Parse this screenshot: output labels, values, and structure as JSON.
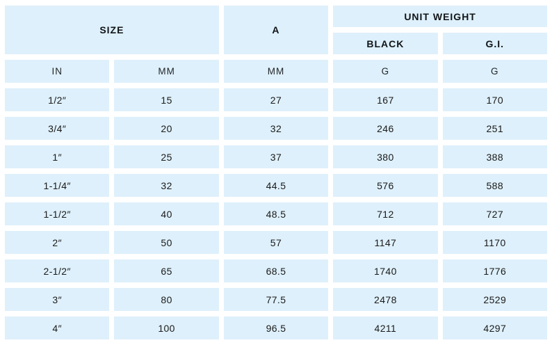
{
  "table": {
    "header": {
      "size": "SIZE",
      "a": "A",
      "unit_weight": "UNIT WEIGHT",
      "black": "BLACK",
      "gi": "G.I."
    },
    "units": [
      "IN",
      "MM",
      "MM",
      "G",
      "G"
    ],
    "columns": [
      "size_in",
      "size_mm",
      "a_mm",
      "unit_weight_black_g",
      "unit_weight_gi_g"
    ],
    "rows": [
      [
        "1/2″",
        "15",
        "27",
        "167",
        "170"
      ],
      [
        "3/4″",
        "20",
        "32",
        "246",
        "251"
      ],
      [
        "1″",
        "25",
        "37",
        "380",
        "388"
      ],
      [
        "1-1/4″",
        "32",
        "44.5",
        "576",
        "588"
      ],
      [
        "1-1/2″",
        "40",
        "48.5",
        "712",
        "727"
      ],
      [
        "2″",
        "50",
        "57",
        "1147",
        "1170"
      ],
      [
        "2-1/2″",
        "65",
        "68.5",
        "1740",
        "1776"
      ],
      [
        "3″",
        "80",
        "77.5",
        "2478",
        "2529"
      ],
      [
        "4″",
        "100",
        "96.5",
        "4211",
        "4297"
      ]
    ]
  },
  "colors": {
    "cell_background": "#def0fb",
    "gap_background": "#ffffff",
    "text": "#1a1a1a"
  }
}
